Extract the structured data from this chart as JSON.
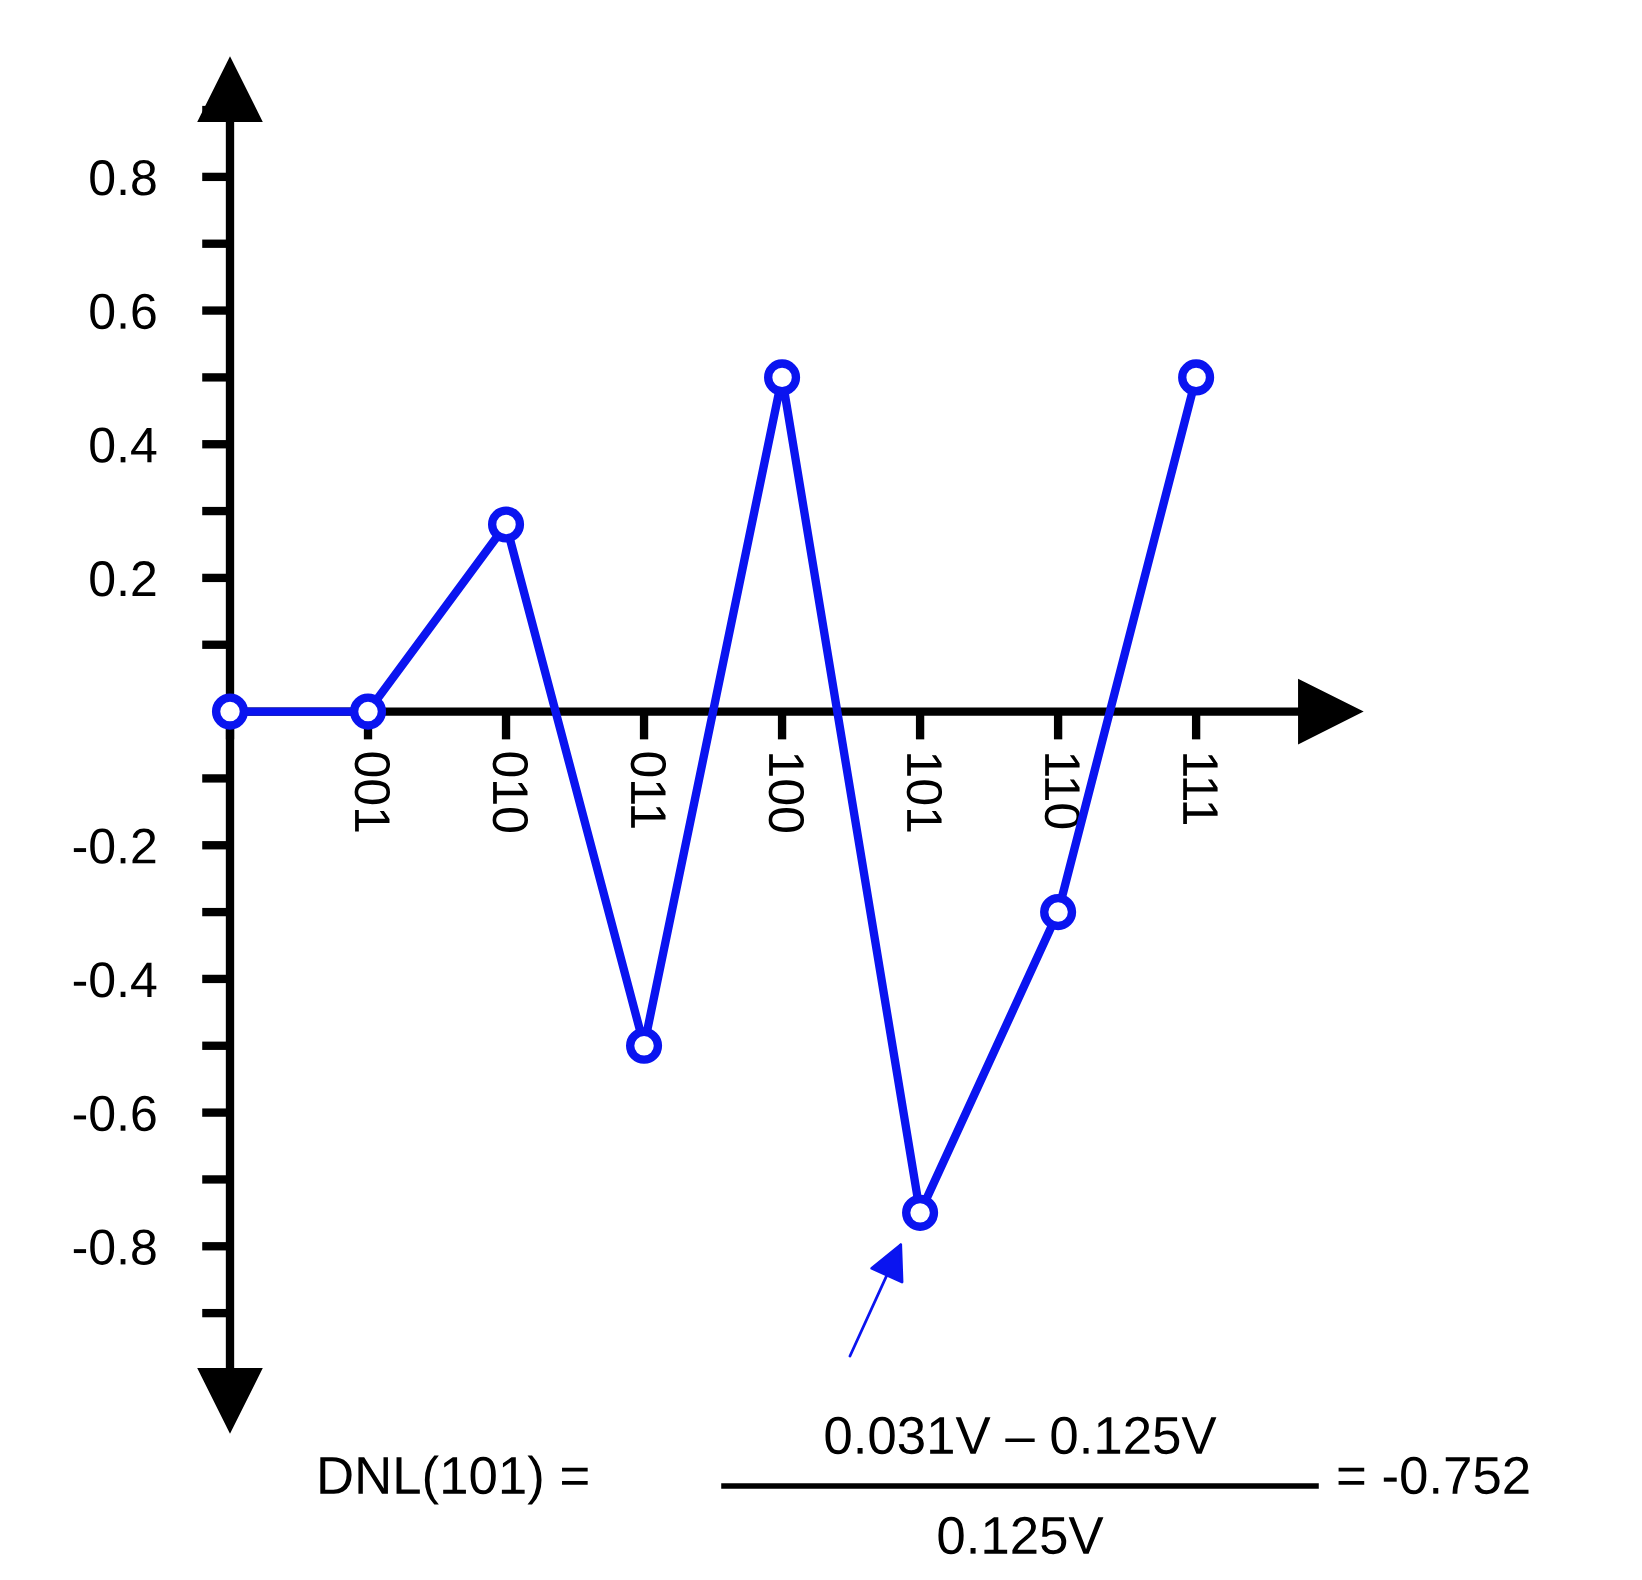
{
  "chart_data": {
    "type": "line",
    "categories": [
      null,
      "001",
      "010",
      "011",
      "100",
      "101",
      "110",
      "111"
    ],
    "series": [
      {
        "color": "#0a14f0",
        "values": [
          0,
          0,
          0.28,
          -0.5,
          0.5,
          -0.75,
          -0.3,
          0.5
        ]
      }
    ],
    "ylim": [
      -1.03,
      0.93
    ],
    "yticks": [
      {
        "value": -0.9,
        "label": null
      },
      -0.8,
      {
        "value": -0.7,
        "label": null
      },
      -0.6,
      {
        "value": -0.5,
        "label": null
      },
      -0.4,
      {
        "value": -0.3,
        "label": null
      },
      -0.2,
      {
        "value": -0.1,
        "label": null
      },
      {
        "value": 0.1,
        "label": null
      },
      0.2,
      {
        "value": 0.3,
        "label": null
      },
      0.4,
      {
        "value": 0.5,
        "label": null
      },
      0.6,
      {
        "value": 0.7,
        "label": null
      },
      0.8,
      {
        "value": 0.9,
        "label": null
      }
    ],
    "annotations": [
      "DNL(101) =",
      "0.031V – 0.125V",
      "0.125V",
      "= -0.752"
    ],
    "grid": false,
    "legend": false,
    "marker": "circle",
    "line_style": "solid"
  }
}
